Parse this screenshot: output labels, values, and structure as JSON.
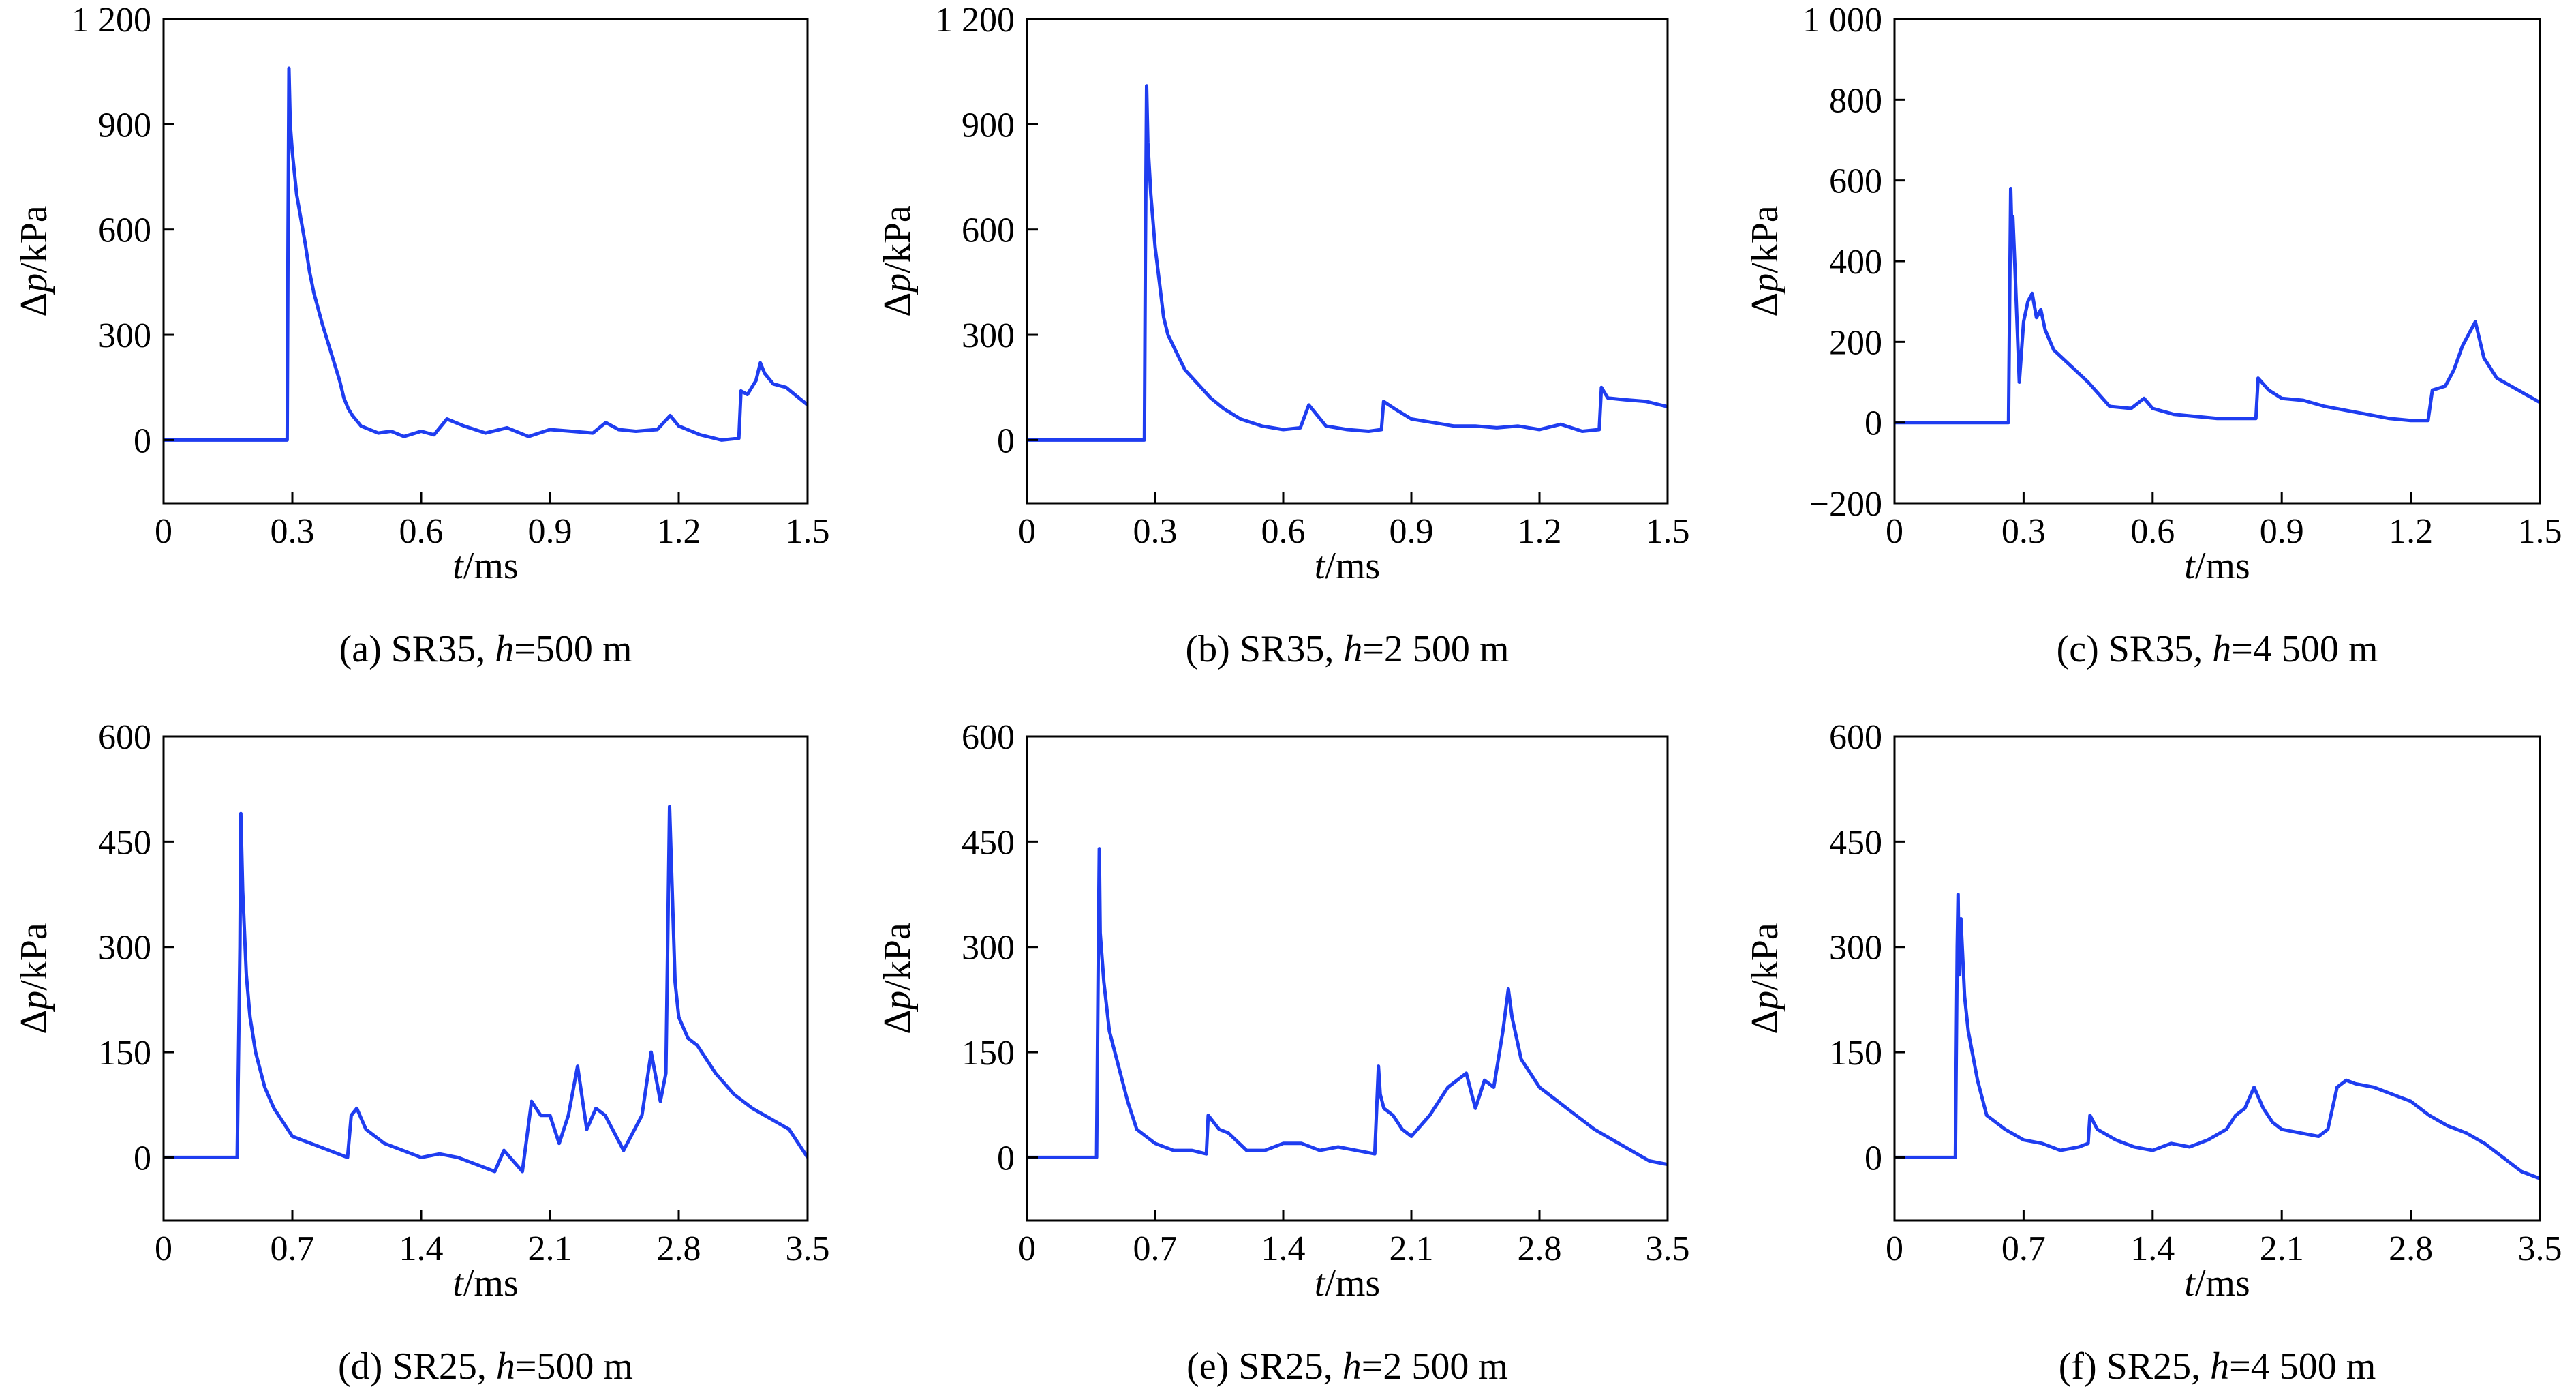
{
  "figure": {
    "line_color": "#1f3df0",
    "panels": [
      {
        "caption_prefix": "(a) SR35, ",
        "caption_var": "h",
        "caption_suffix": "=500 m",
        "xlabel_var": "t",
        "xlabel_unit": "/ms",
        "ylabel_prefix": "Δ",
        "ylabel_var": "p",
        "ylabel_unit": "/kPa"
      },
      {
        "caption_prefix": "(b) SR35, ",
        "caption_var": "h",
        "caption_suffix": "=2 500 m",
        "xlabel_var": "t",
        "xlabel_unit": "/ms",
        "ylabel_prefix": "Δ",
        "ylabel_var": "p",
        "ylabel_unit": "/kPa"
      },
      {
        "caption_prefix": "(c) SR35, ",
        "caption_var": "h",
        "caption_suffix": "=4 500 m",
        "xlabel_var": "t",
        "xlabel_unit": "/ms",
        "ylabel_prefix": "Δ",
        "ylabel_var": "p",
        "ylabel_unit": "/kPa"
      },
      {
        "caption_prefix": "(d) SR25, ",
        "caption_var": "h",
        "caption_suffix": "=500 m",
        "xlabel_var": "t",
        "xlabel_unit": "/ms",
        "ylabel_prefix": "Δ",
        "ylabel_var": "p",
        "ylabel_unit": "/kPa"
      },
      {
        "caption_prefix": "(e) SR25, ",
        "caption_var": "h",
        "caption_suffix": "=2 500 m",
        "xlabel_var": "t",
        "xlabel_unit": "/ms",
        "ylabel_prefix": "Δ",
        "ylabel_var": "p",
        "ylabel_unit": "/kPa"
      },
      {
        "caption_prefix": "(f) SR25, ",
        "caption_var": "h",
        "caption_suffix": "=4 500 m",
        "xlabel_var": "t",
        "xlabel_unit": "/ms",
        "ylabel_prefix": "Δ",
        "ylabel_var": "p",
        "ylabel_unit": "/kPa"
      }
    ]
  },
  "chart_data": [
    {
      "type": "line",
      "xlim": [
        0,
        1.5
      ],
      "ylim": [
        -180,
        1200
      ],
      "xticks": [
        0,
        0.3,
        0.6,
        0.9,
        1.2,
        1.5
      ],
      "xtick_labels": [
        "0",
        "0.3",
        "0.6",
        "0.9",
        "1.2",
        "1.5"
      ],
      "yticks": [
        0,
        300,
        600,
        900,
        1200
      ],
      "ytick_labels": [
        "0",
        "300",
        "600",
        "900",
        "1 200"
      ],
      "grid": false,
      "x": [
        0,
        0.15,
        0.288,
        0.29,
        0.292,
        0.295,
        0.3,
        0.31,
        0.32,
        0.33,
        0.34,
        0.35,
        0.37,
        0.39,
        0.41,
        0.42,
        0.43,
        0.44,
        0.46,
        0.48,
        0.5,
        0.53,
        0.56,
        0.6,
        0.63,
        0.66,
        0.7,
        0.75,
        0.8,
        0.85,
        0.9,
        0.95,
        1.0,
        1.03,
        1.06,
        1.1,
        1.15,
        1.18,
        1.2,
        1.25,
        1.3,
        1.34,
        1.345,
        1.36,
        1.38,
        1.39,
        1.4,
        1.42,
        1.45,
        1.48,
        1.5
      ],
      "y": [
        0,
        0,
        0,
        600,
        1060,
        900,
        820,
        700,
        630,
        560,
        480,
        420,
        330,
        250,
        170,
        120,
        90,
        70,
        40,
        30,
        20,
        25,
        10,
        25,
        15,
        60,
        40,
        20,
        35,
        10,
        30,
        25,
        20,
        50,
        30,
        25,
        30,
        70,
        40,
        15,
        0,
        5,
        140,
        130,
        170,
        220,
        190,
        160,
        150,
        120,
        100
      ]
    },
    {
      "type": "line",
      "xlim": [
        0,
        1.5
      ],
      "ylim": [
        -180,
        1200
      ],
      "xticks": [
        0,
        0.3,
        0.6,
        0.9,
        1.2,
        1.5
      ],
      "xtick_labels": [
        "0",
        "0.3",
        "0.6",
        "0.9",
        "1.2",
        "1.5"
      ],
      "yticks": [
        0,
        300,
        600,
        900,
        1200
      ],
      "ytick_labels": [
        "0",
        "300",
        "600",
        "900",
        "1 200"
      ],
      "grid": false,
      "x": [
        0,
        0.15,
        0.275,
        0.277,
        0.28,
        0.283,
        0.29,
        0.3,
        0.31,
        0.32,
        0.33,
        0.35,
        0.37,
        0.4,
        0.43,
        0.46,
        0.5,
        0.55,
        0.6,
        0.64,
        0.66,
        0.7,
        0.75,
        0.8,
        0.83,
        0.835,
        0.86,
        0.9,
        0.95,
        1.0,
        1.05,
        1.1,
        1.15,
        1.2,
        1.25,
        1.3,
        1.34,
        1.345,
        1.36,
        1.4,
        1.45,
        1.5
      ],
      "y": [
        0,
        0,
        0,
        500,
        1010,
        850,
        700,
        550,
        450,
        350,
        300,
        250,
        200,
        160,
        120,
        90,
        60,
        40,
        30,
        35,
        100,
        40,
        30,
        25,
        30,
        110,
        90,
        60,
        50,
        40,
        40,
        35,
        40,
        30,
        45,
        25,
        30,
        150,
        120,
        115,
        110,
        95
      ]
    },
    {
      "type": "line",
      "xlim": [
        0,
        1.5
      ],
      "ylim": [
        -200,
        1000
      ],
      "xticks": [
        0,
        0.3,
        0.6,
        0.9,
        1.2,
        1.5
      ],
      "xtick_labels": [
        "0",
        "0.3",
        "0.6",
        "0.9",
        "1.2",
        "1.5"
      ],
      "yticks": [
        -200,
        0,
        200,
        400,
        600,
        800,
        1000
      ],
      "ytick_labels": [
        "−200",
        "0",
        "200",
        "400",
        "600",
        "800",
        "1 000"
      ],
      "grid": false,
      "x": [
        0,
        0.15,
        0.265,
        0.268,
        0.27,
        0.272,
        0.275,
        0.28,
        0.29,
        0.3,
        0.31,
        0.32,
        0.33,
        0.34,
        0.35,
        0.37,
        0.4,
        0.45,
        0.5,
        0.55,
        0.58,
        0.6,
        0.65,
        0.7,
        0.75,
        0.8,
        0.84,
        0.845,
        0.87,
        0.9,
        0.95,
        1.0,
        1.05,
        1.1,
        1.15,
        1.2,
        1.24,
        1.25,
        1.28,
        1.3,
        1.32,
        1.34,
        1.35,
        1.37,
        1.4,
        1.45,
        1.5
      ],
      "y": [
        0,
        0,
        0,
        350,
        580,
        500,
        510,
        380,
        100,
        250,
        300,
        320,
        260,
        280,
        230,
        180,
        150,
        100,
        40,
        35,
        60,
        35,
        20,
        15,
        10,
        10,
        10,
        110,
        80,
        60,
        55,
        40,
        30,
        20,
        10,
        5,
        5,
        80,
        90,
        130,
        190,
        230,
        250,
        160,
        110,
        80,
        50
      ]
    },
    {
      "type": "line",
      "xlim": [
        0,
        3.5
      ],
      "ylim": [
        -90,
        600
      ],
      "xticks": [
        0,
        0.7,
        1.4,
        2.1,
        2.8,
        3.5
      ],
      "xtick_labels": [
        "0",
        "0.7",
        "1.4",
        "2.1",
        "2.8",
        "3.5"
      ],
      "yticks": [
        0,
        150,
        300,
        450,
        600
      ],
      "ytick_labels": [
        "0",
        "150",
        "300",
        "450",
        "600"
      ],
      "grid": false,
      "x": [
        0,
        0.2,
        0.4,
        0.415,
        0.42,
        0.43,
        0.45,
        0.47,
        0.5,
        0.55,
        0.6,
        0.7,
        0.8,
        0.9,
        1.0,
        1.02,
        1.05,
        1.1,
        1.2,
        1.3,
        1.4,
        1.5,
        1.6,
        1.7,
        1.8,
        1.85,
        1.95,
        2.0,
        2.05,
        2.1,
        2.15,
        2.2,
        2.25,
        2.3,
        2.35,
        2.4,
        2.5,
        2.6,
        2.65,
        2.7,
        2.73,
        2.75,
        2.78,
        2.8,
        2.85,
        2.9,
        3.0,
        3.1,
        3.2,
        3.3,
        3.4,
        3.5
      ],
      "y": [
        0,
        0,
        0,
        300,
        490,
        380,
        260,
        200,
        150,
        100,
        70,
        30,
        20,
        10,
        0,
        60,
        70,
        40,
        20,
        10,
        0,
        5,
        0,
        -10,
        -20,
        10,
        -20,
        80,
        60,
        60,
        20,
        60,
        130,
        40,
        70,
        60,
        10,
        60,
        150,
        80,
        120,
        500,
        250,
        200,
        170,
        160,
        120,
        90,
        70,
        55,
        40,
        0
      ]
    },
    {
      "type": "line",
      "xlim": [
        0,
        3.5
      ],
      "ylim": [
        -90,
        600
      ],
      "xticks": [
        0,
        0.7,
        1.4,
        2.1,
        2.8,
        3.5
      ],
      "xtick_labels": [
        "0",
        "0.7",
        "1.4",
        "2.1",
        "2.8",
        "3.5"
      ],
      "yticks": [
        0,
        150,
        300,
        450,
        600
      ],
      "ytick_labels": [
        "0",
        "150",
        "300",
        "450",
        "600"
      ],
      "grid": false,
      "x": [
        0,
        0.2,
        0.38,
        0.39,
        0.395,
        0.4,
        0.42,
        0.45,
        0.5,
        0.55,
        0.6,
        0.7,
        0.8,
        0.9,
        0.98,
        0.99,
        1.05,
        1.1,
        1.2,
        1.3,
        1.4,
        1.5,
        1.6,
        1.7,
        1.8,
        1.9,
        1.92,
        1.93,
        1.95,
        2.0,
        2.05,
        2.1,
        2.2,
        2.3,
        2.4,
        2.45,
        2.5,
        2.55,
        2.6,
        2.63,
        2.65,
        2.7,
        2.75,
        2.8,
        2.9,
        3.0,
        3.1,
        3.2,
        3.3,
        3.4,
        3.5
      ],
      "y": [
        0,
        0,
        0,
        300,
        440,
        320,
        250,
        180,
        130,
        80,
        40,
        20,
        10,
        10,
        5,
        60,
        40,
        35,
        10,
        10,
        20,
        20,
        10,
        15,
        10,
        5,
        130,
        90,
        70,
        60,
        40,
        30,
        60,
        100,
        120,
        70,
        110,
        100,
        180,
        240,
        200,
        140,
        120,
        100,
        80,
        60,
        40,
        25,
        10,
        -5,
        -10
      ]
    },
    {
      "type": "line",
      "xlim": [
        0,
        3.5
      ],
      "ylim": [
        -90,
        600
      ],
      "xticks": [
        0,
        0.7,
        1.4,
        2.1,
        2.8,
        3.5
      ],
      "xtick_labels": [
        "0",
        "0.7",
        "1.4",
        "2.1",
        "2.8",
        "3.5"
      ],
      "yticks": [
        0,
        150,
        300,
        450,
        600
      ],
      "ytick_labels": [
        "0",
        "150",
        "300",
        "450",
        "600"
      ],
      "grid": false,
      "x": [
        0,
        0.2,
        0.33,
        0.34,
        0.345,
        0.35,
        0.36,
        0.38,
        0.4,
        0.45,
        0.5,
        0.6,
        0.7,
        0.8,
        0.9,
        1.0,
        1.05,
        1.06,
        1.1,
        1.2,
        1.3,
        1.4,
        1.5,
        1.6,
        1.7,
        1.8,
        1.85,
        1.9,
        1.95,
        2.0,
        2.05,
        2.1,
        2.2,
        2.3,
        2.35,
        2.4,
        2.45,
        2.5,
        2.6,
        2.7,
        2.8,
        2.9,
        3.0,
        3.1,
        3.2,
        3.3,
        3.4,
        3.5
      ],
      "y": [
        0,
        0,
        0,
        300,
        375,
        260,
        340,
        230,
        180,
        110,
        60,
        40,
        25,
        20,
        10,
        15,
        20,
        60,
        40,
        25,
        15,
        10,
        20,
        15,
        25,
        40,
        60,
        70,
        100,
        70,
        50,
        40,
        35,
        30,
        40,
        100,
        110,
        105,
        100,
        90,
        80,
        60,
        45,
        35,
        20,
        0,
        -20,
        -30
      ]
    }
  ]
}
